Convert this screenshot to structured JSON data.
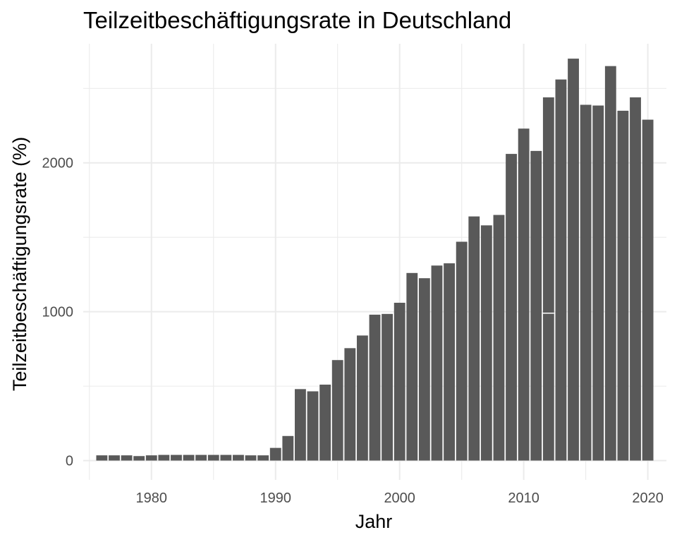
{
  "chart_data": {
    "type": "bar",
    "title": "Teilzeitbeschäftigungsrate in Deutschland",
    "xlabel": "Jahr",
    "ylabel": "Teilzeitbeschäftigungsrate (%)",
    "x": [
      1976,
      1977,
      1978,
      1979,
      1980,
      1981,
      1982,
      1983,
      1984,
      1985,
      1986,
      1987,
      1988,
      1989,
      1990,
      1991,
      1992,
      1993,
      1994,
      1995,
      1996,
      1997,
      1998,
      1999,
      2000,
      2001,
      2002,
      2003,
      2004,
      2005,
      2006,
      2007,
      2008,
      2009,
      2010,
      2011,
      2012,
      2013,
      2014,
      2015,
      2016,
      2017,
      2018,
      2019,
      2020
    ],
    "values": [
      35,
      35,
      35,
      30,
      35,
      38,
      38,
      38,
      38,
      38,
      38,
      38,
      35,
      35,
      85,
      165,
      480,
      465,
      510,
      675,
      755,
      840,
      980,
      985,
      1060,
      1260,
      1225,
      1310,
      1325,
      1470,
      1640,
      1580,
      1650,
      2060,
      2230,
      2080,
      2440,
      2560,
      2700,
      2390,
      2385,
      2650,
      2350,
      2440,
      2290
    ],
    "xlim": [
      1974.5,
      2021.5
    ],
    "ylim": [
      -130,
      2800
    ],
    "x_ticks": [
      1980,
      1990,
      2000,
      2010,
      2020
    ],
    "y_ticks": [
      0,
      1000,
      2000
    ],
    "y_minor_ticks": [
      500,
      1500,
      2500
    ],
    "x_minor_ticks": [
      1975,
      1985,
      1995,
      2005,
      2015
    ],
    "annotations": [
      {
        "x": 2012,
        "y": 990,
        "text": "–"
      }
    ],
    "grid": true,
    "legend": "none",
    "bar_color": "#595959",
    "grid_color": "#ebebeb"
  }
}
